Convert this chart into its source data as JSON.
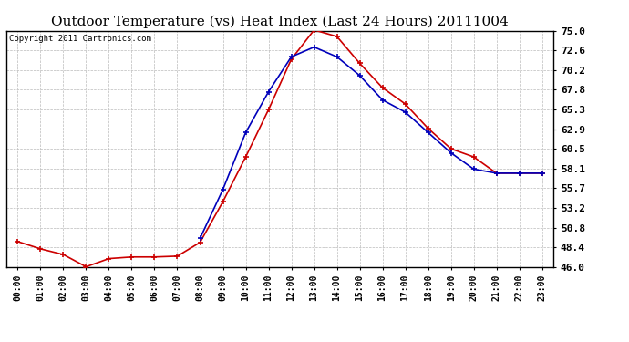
{
  "title": "Outdoor Temperature (vs) Heat Index (Last 24 Hours) 20111004",
  "copyright": "Copyright 2011 Cartronics.com",
  "x_labels": [
    "00:00",
    "01:00",
    "02:00",
    "03:00",
    "04:00",
    "05:00",
    "06:00",
    "07:00",
    "08:00",
    "09:00",
    "10:00",
    "11:00",
    "12:00",
    "13:00",
    "14:00",
    "15:00",
    "16:00",
    "17:00",
    "18:00",
    "19:00",
    "20:00",
    "21:00",
    "22:00",
    "23:00"
  ],
  "temp_red": [
    49.1,
    48.2,
    47.5,
    46.0,
    47.0,
    47.2,
    47.2,
    47.3,
    49.0,
    54.0,
    59.5,
    65.3,
    71.5,
    75.1,
    74.3,
    71.0,
    68.0,
    66.0,
    63.0,
    60.5,
    59.5,
    57.5,
    57.5,
    57.5
  ],
  "heat_blue": [
    null,
    null,
    null,
    null,
    null,
    null,
    null,
    null,
    49.5,
    55.5,
    62.5,
    67.5,
    71.8,
    73.0,
    71.8,
    69.5,
    66.5,
    65.0,
    62.5,
    60.0,
    58.0,
    57.5,
    57.5,
    57.5
  ],
  "ylim": [
    46.0,
    75.0
  ],
  "yticks": [
    46.0,
    48.4,
    50.8,
    53.2,
    55.7,
    58.1,
    60.5,
    62.9,
    65.3,
    67.8,
    70.2,
    72.6,
    75.0
  ],
  "bg_color": "#ffffff",
  "plot_bg_color": "#ffffff",
  "grid_color": "#bbbbbb",
  "red_color": "#cc0000",
  "blue_color": "#0000bb",
  "title_fontsize": 11,
  "tick_fontsize": 7,
  "copyright_fontsize": 6.5
}
